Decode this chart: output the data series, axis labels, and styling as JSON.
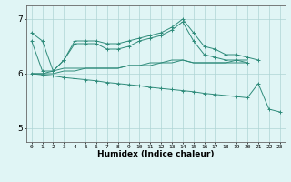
{
  "xlabel": "Humidex (Indice chaleur)",
  "x_values": [
    0,
    1,
    2,
    3,
    4,
    5,
    6,
    7,
    8,
    9,
    10,
    11,
    12,
    13,
    14,
    15,
    16,
    17,
    18,
    19,
    20,
    21,
    22,
    23
  ],
  "series": [
    {
      "y": [
        6.75,
        6.6,
        6.05,
        6.25,
        6.6,
        6.6,
        6.6,
        6.55,
        6.55,
        6.6,
        6.65,
        6.7,
        6.75,
        6.85,
        7.0,
        6.75,
        6.5,
        6.45,
        6.35,
        6.35,
        6.3,
        6.25,
        null,
        null
      ],
      "marker": true
    },
    {
      "y": [
        6.6,
        6.05,
        6.05,
        6.25,
        6.55,
        6.55,
        6.55,
        6.45,
        6.45,
        6.5,
        6.6,
        6.65,
        6.7,
        6.8,
        6.95,
        6.6,
        6.35,
        6.3,
        6.25,
        6.25,
        6.2,
        null,
        null,
        null
      ],
      "marker": true
    },
    {
      "y": [
        6.0,
        6.0,
        6.05,
        6.1,
        6.1,
        6.1,
        6.1,
        6.1,
        6.1,
        6.15,
        6.15,
        6.15,
        6.2,
        6.2,
        6.25,
        6.2,
        6.2,
        6.2,
        6.2,
        6.2,
        6.2,
        null,
        null,
        null
      ],
      "marker": false
    },
    {
      "y": [
        6.0,
        6.0,
        6.0,
        6.05,
        6.05,
        6.1,
        6.1,
        6.1,
        6.1,
        6.15,
        6.15,
        6.2,
        6.2,
        6.25,
        6.25,
        6.2,
        6.2,
        6.2,
        6.2,
        6.25,
        6.25,
        null,
        null,
        null
      ],
      "marker": false
    },
    {
      "y": [
        6.0,
        5.98,
        5.96,
        5.93,
        5.91,
        5.89,
        5.87,
        5.84,
        5.82,
        5.8,
        5.78,
        5.75,
        5.73,
        5.71,
        5.69,
        5.67,
        5.64,
        5.62,
        5.6,
        5.58,
        5.56,
        5.82,
        5.35,
        5.3
      ],
      "marker": true
    }
  ],
  "line_color": "#2e8b7a",
  "bg_color": "#e0f5f5",
  "grid_color": "#aed4d4",
  "yticks": [
    5,
    6,
    7
  ],
  "ylim": [
    4.75,
    7.25
  ],
  "xlim": [
    -0.5,
    23.5
  ]
}
